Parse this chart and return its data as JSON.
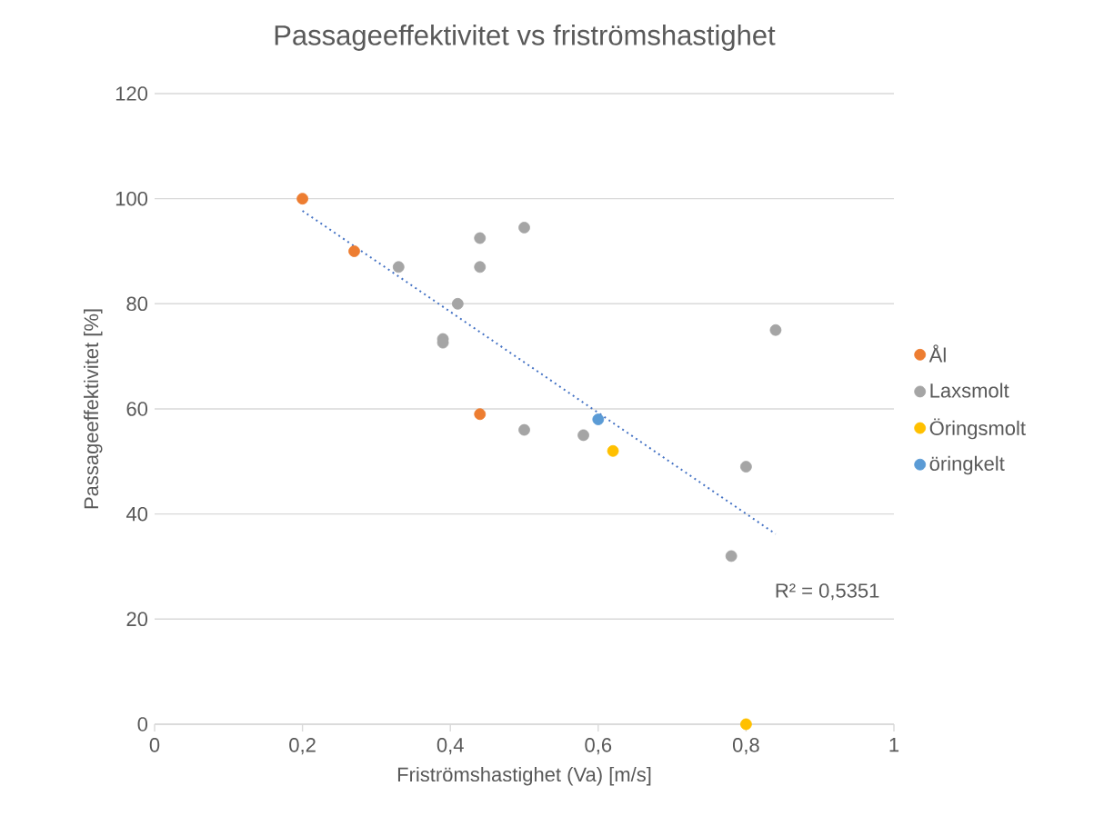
{
  "chart_data": {
    "type": "scatter",
    "title": "Passageeffektivitet vs friströmshastighet",
    "xlabel": "Friströmshastighet (Va) [m/s]",
    "ylabel": "Passageeffektivitet  [%]",
    "xlim": [
      0,
      1
    ],
    "ylim": [
      0,
      120
    ],
    "xticks": [
      0,
      {
        "value": 0.2,
        "label": "0,2"
      },
      {
        "value": 0.4,
        "label": "0,4"
      },
      {
        "value": 0.6,
        "label": "0,6"
      },
      {
        "value": 0.8,
        "label": "0,8"
      },
      1
    ],
    "yticks": [
      0,
      20,
      40,
      60,
      80,
      100,
      120
    ],
    "grid": "y",
    "legend": "right",
    "series": [
      {
        "name": "Ål",
        "color": "#ed7d31",
        "marker": "circle",
        "x": [
          0.2,
          0.27,
          0.44
        ],
        "values": [
          100,
          90,
          59
        ]
      },
      {
        "name": "Laxsmolt",
        "color": "#a5a5a5",
        "marker": "circle",
        "x": [
          0.33,
          0.39,
          0.39,
          0.41,
          0.44,
          0.44,
          0.5,
          0.5,
          0.58,
          0.84,
          0.8,
          0.78
        ],
        "values": [
          87,
          73.3,
          72.6,
          80,
          92.5,
          87,
          94.5,
          56,
          55,
          75,
          49,
          32
        ]
      },
      {
        "name": "Öringsmolt",
        "color": "#ffc000",
        "marker": "circle",
        "x": [
          0.62,
          0.8
        ],
        "values": [
          52,
          0
        ]
      },
      {
        "name": "öringkelt",
        "color": "#5b9bd5",
        "marker": "circle",
        "x": [
          0.6
        ],
        "values": [
          58
        ]
      },
      {
        "type": "line",
        "line_style": "dotted",
        "marker": "none",
        "color": "#4472c4",
        "x": [
          0.2,
          0.84
        ],
        "values": [
          97.7,
          36.2
        ]
      }
    ],
    "annotations": [
      "R² = 0,5351"
    ]
  }
}
